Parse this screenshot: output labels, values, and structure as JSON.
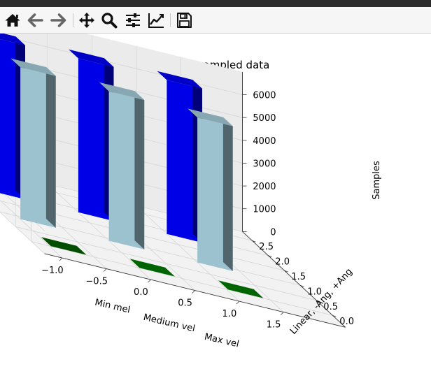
{
  "toolbar": {
    "buttons": [
      {
        "id": "home",
        "icon": "home-icon"
      },
      {
        "id": "back",
        "icon": "back-arrow-icon"
      },
      {
        "id": "forward",
        "icon": "forward-arrow-icon"
      },
      {
        "id": "pan",
        "icon": "pan-move-icon"
      },
      {
        "id": "zoom",
        "icon": "zoom-magnifier-icon"
      },
      {
        "id": "subplots",
        "icon": "configure-subplots-icon"
      },
      {
        "id": "axes",
        "icon": "edit-axes-icon"
      },
      {
        "id": "save",
        "icon": "save-disk-icon"
      }
    ]
  },
  "chart_data": {
    "type": "bar",
    "projection": "3d",
    "title": "Oversampled data",
    "xlabel": "",
    "ylabel": "Linear, -Ang, +Ang",
    "zlabel": "Samples",
    "x_tick_labels": [
      "−1.0",
      "−0.5",
      "0.0",
      "0.5",
      "1.0",
      "1.5"
    ],
    "x_category_labels": [
      "Min mel",
      "Medium vel",
      "Max vel"
    ],
    "y_tick_labels": [
      "0.0",
      "0.5",
      "1.0",
      "1.5",
      "2.0",
      "2.5"
    ],
    "z_tick_labels": [
      "0",
      "1000",
      "2000",
      "3000",
      "4000",
      "5000",
      "6000"
    ],
    "xlim": [
      -1.2,
      2.2
    ],
    "ylim": [
      -0.4,
      2.8
    ],
    "zlim": [
      0,
      7000
    ],
    "grid": true,
    "categories": [
      "Min mel",
      "Medium vel",
      "Max vel"
    ],
    "series": [
      {
        "y_position": 0,
        "color": "#006400",
        "values": [
          60,
          60,
          60
        ]
      },
      {
        "y_position": 1,
        "color": "#add8e6",
        "values": [
          6650,
          6550,
          6350
        ]
      },
      {
        "y_position": 2,
        "color": "#0000ff",
        "values": [
          6750,
          6750,
          6750
        ]
      }
    ],
    "colors": {
      "min_dark_green": "#004d00",
      "light_blue": "#add8e6",
      "blue": "#0000ff",
      "green": "#006400"
    }
  }
}
